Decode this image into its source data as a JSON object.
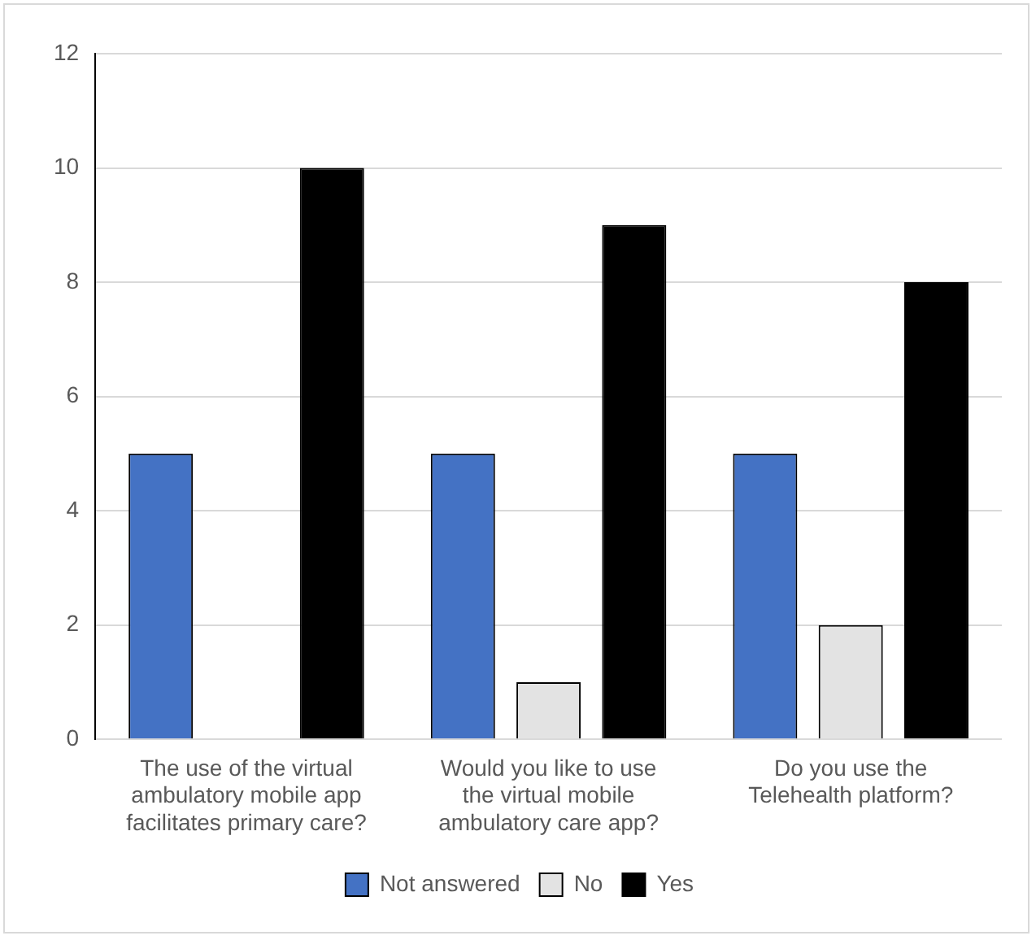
{
  "chart_data": {
    "type": "bar",
    "categories": [
      "The use of the virtual ambulatory mobile app facilitates primary care?",
      "Would you like to use the virtual mobile ambulatory care app?",
      "Do you use the Telehealth platform?"
    ],
    "series": [
      {
        "name": "Not answered",
        "color": "#4472c4",
        "values": [
          5,
          5,
          5
        ]
      },
      {
        "name": "No",
        "color": "#e3e3e3",
        "values": [
          0,
          1,
          2
        ]
      },
      {
        "name": "Yes",
        "color": "#000000",
        "values": [
          10,
          9,
          8
        ]
      }
    ],
    "ylim": [
      0,
      12
    ],
    "yticks": [
      0,
      2,
      4,
      6,
      8,
      10,
      12
    ],
    "grid": "y",
    "legend": "bottom"
  }
}
